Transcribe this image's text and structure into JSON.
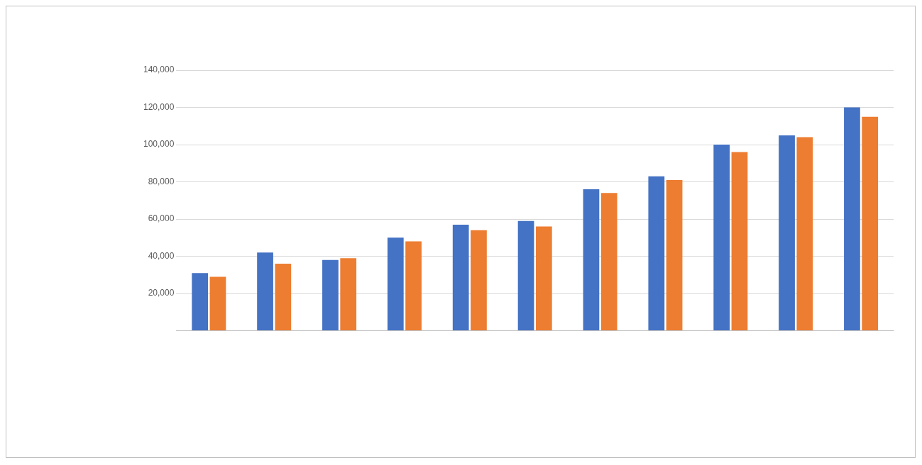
{
  "chart_data": {
    "type": "bar",
    "categories": [
      null,
      null,
      null,
      null,
      null,
      null,
      null,
      null,
      null,
      null,
      null
    ],
    "series": [
      {
        "color": "#4472c4",
        "values": [
          31000,
          42000,
          38000,
          50000,
          57000,
          59000,
          76000,
          83000,
          100000,
          105000,
          120000
        ]
      },
      {
        "color": "#ed7d31",
        "values": [
          29000,
          36000,
          39000,
          48000,
          54000,
          56000,
          74000,
          81000,
          96000,
          104000,
          115000
        ]
      }
    ],
    "ylim": [
      0,
      140000
    ],
    "yticks": [
      {
        "value": 0,
        "label": null
      },
      {
        "value": 20000,
        "label": "20,000"
      },
      {
        "value": 40000,
        "label": "40,000"
      },
      {
        "value": 60000,
        "label": "60,000"
      },
      {
        "value": 80000,
        "label": "80,000"
      },
      {
        "value": 100000,
        "label": "100,000"
      },
      {
        "value": 120000,
        "label": "120,000"
      },
      {
        "value": 140000,
        "label": "140,000"
      }
    ],
    "grid": "y",
    "legend": false
  }
}
